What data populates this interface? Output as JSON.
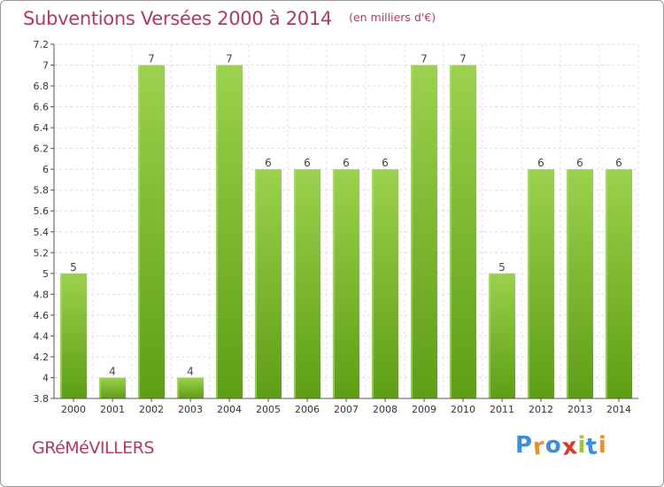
{
  "chart_data": {
    "type": "bar",
    "title": "Subventions Versées 2000 à 2014",
    "subtitle": "(en milliers d'€)",
    "categories": [
      "2000",
      "2001",
      "2002",
      "2003",
      "2004",
      "2005",
      "2006",
      "2007",
      "2008",
      "2009",
      "2010",
      "2011",
      "2012",
      "2013",
      "2014"
    ],
    "values": [
      5,
      4,
      7,
      4,
      7,
      6,
      6,
      6,
      6,
      7,
      7,
      5,
      6,
      6,
      6
    ],
    "data_labels": [
      "5",
      "4",
      "7",
      "4",
      "7",
      "6",
      "6",
      "6",
      "6",
      "7",
      "7",
      "5",
      "6",
      "6",
      "6"
    ],
    "ylim": [
      3.8,
      7.2
    ],
    "y_ticks": [
      "3.8",
      "4",
      "4.2",
      "4.4",
      "4.6",
      "4.8",
      "5",
      "5.2",
      "5.4",
      "5.6",
      "5.8",
      "6",
      "6.2",
      "6.4",
      "6.6",
      "6.8",
      "7",
      "7.2"
    ],
    "y_tick_values": [
      3.8,
      4.0,
      4.2,
      4.4,
      4.6,
      4.8,
      5.0,
      5.2,
      5.4,
      5.6,
      5.8,
      6.0,
      6.2,
      6.4,
      6.6,
      6.8,
      7.0,
      7.2
    ],
    "grid": true,
    "bar_color": "#7fc031",
    "bar_color_dark": "#5e9e16"
  },
  "commune": "GRéMéVILLERS",
  "logo": {
    "letters": [
      "P",
      "r",
      "o",
      "x",
      "i",
      "t",
      "i"
    ],
    "colors": [
      "#3a8fd6",
      "#e8912a",
      "#3a8fd6",
      "#d93a2a",
      "#9ac43a",
      "#3a8fd6",
      "#e8912a"
    ]
  }
}
